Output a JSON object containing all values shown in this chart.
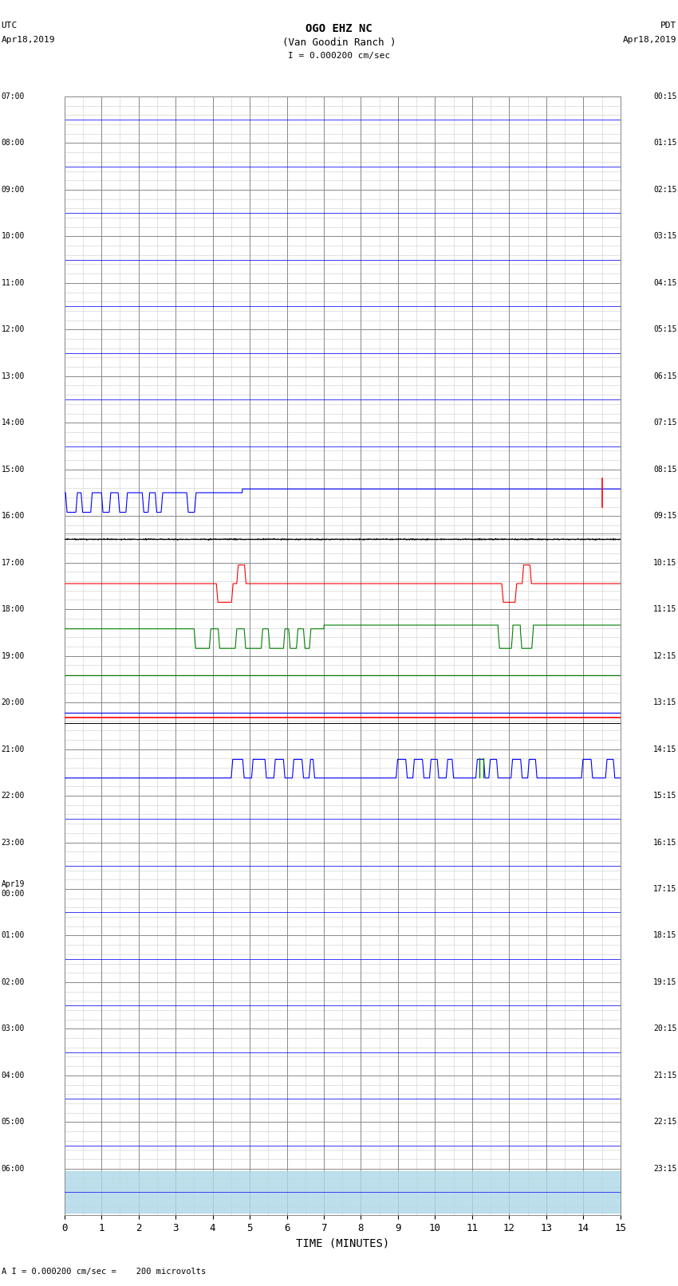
{
  "title_line1": "OGO EHZ NC",
  "title_line2": "(Van Goodin Ranch )",
  "title_scale": "I = 0.000200 cm/sec",
  "left_header_line1": "UTC",
  "left_header_line2": "Apr18,2019",
  "right_header_line1": "PDT",
  "right_header_line2": "Apr18,2019",
  "footer_note": "A I = 0.000200 cm/sec =    200 microvolts",
  "xlabel": "TIME (MINUTES)",
  "xlim": [
    0,
    15
  ],
  "xticks": [
    0,
    1,
    2,
    3,
    4,
    5,
    6,
    7,
    8,
    9,
    10,
    11,
    12,
    13,
    14,
    15
  ],
  "bg_color": "#ffffff",
  "grid_major_color": "#888888",
  "grid_minor_color": "#cccccc",
  "num_rows": 24,
  "left_times": [
    "07:00",
    "08:00",
    "09:00",
    "10:00",
    "11:00",
    "12:00",
    "13:00",
    "14:00",
    "15:00",
    "16:00",
    "17:00",
    "18:00",
    "19:00",
    "20:00",
    "21:00",
    "22:00",
    "23:00",
    "Apr19\n00:00",
    "01:00",
    "02:00",
    "03:00",
    "04:00",
    "05:00",
    "06:00"
  ],
  "right_times": [
    "00:15",
    "01:15",
    "02:15",
    "03:15",
    "04:15",
    "05:15",
    "06:15",
    "07:15",
    "08:15",
    "09:15",
    "10:15",
    "11:15",
    "12:15",
    "13:15",
    "14:15",
    "15:15",
    "16:15",
    "17:15",
    "18:15",
    "19:15",
    "20:15",
    "21:15",
    "22:15",
    "23:15"
  ],
  "figsize": [
    8.5,
    16.13
  ],
  "dpi": 100
}
